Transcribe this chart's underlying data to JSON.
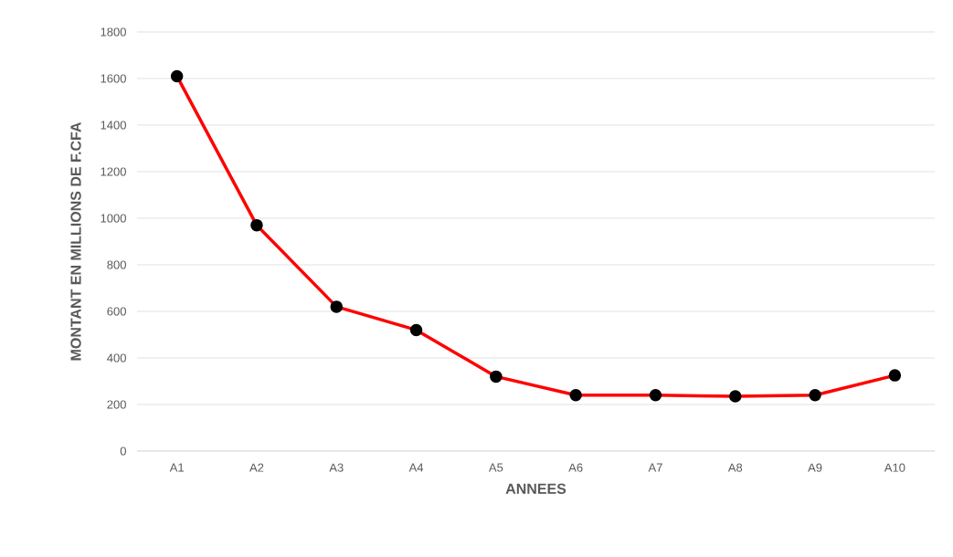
{
  "chart_data": {
    "type": "line",
    "xlabel": "ANNEES",
    "ylabel": "MONTANT EN MILLIONS DE F.CFA",
    "categories": [
      "A1",
      "A2",
      "A3",
      "A4",
      "A5",
      "A6",
      "A7",
      "A8",
      "A9",
      "A10"
    ],
    "series": [
      {
        "color": "#ff0000",
        "values": [
          1610,
          970,
          620,
          520,
          320,
          240,
          240,
          235,
          240,
          325
        ]
      }
    ],
    "ylim": [
      0,
      1800
    ],
    "yticks": [
      0,
      200,
      400,
      600,
      800,
      1000,
      1200,
      1400,
      1600,
      1800
    ],
    "grid": "y",
    "marker": "circle",
    "line_style": "solid"
  }
}
